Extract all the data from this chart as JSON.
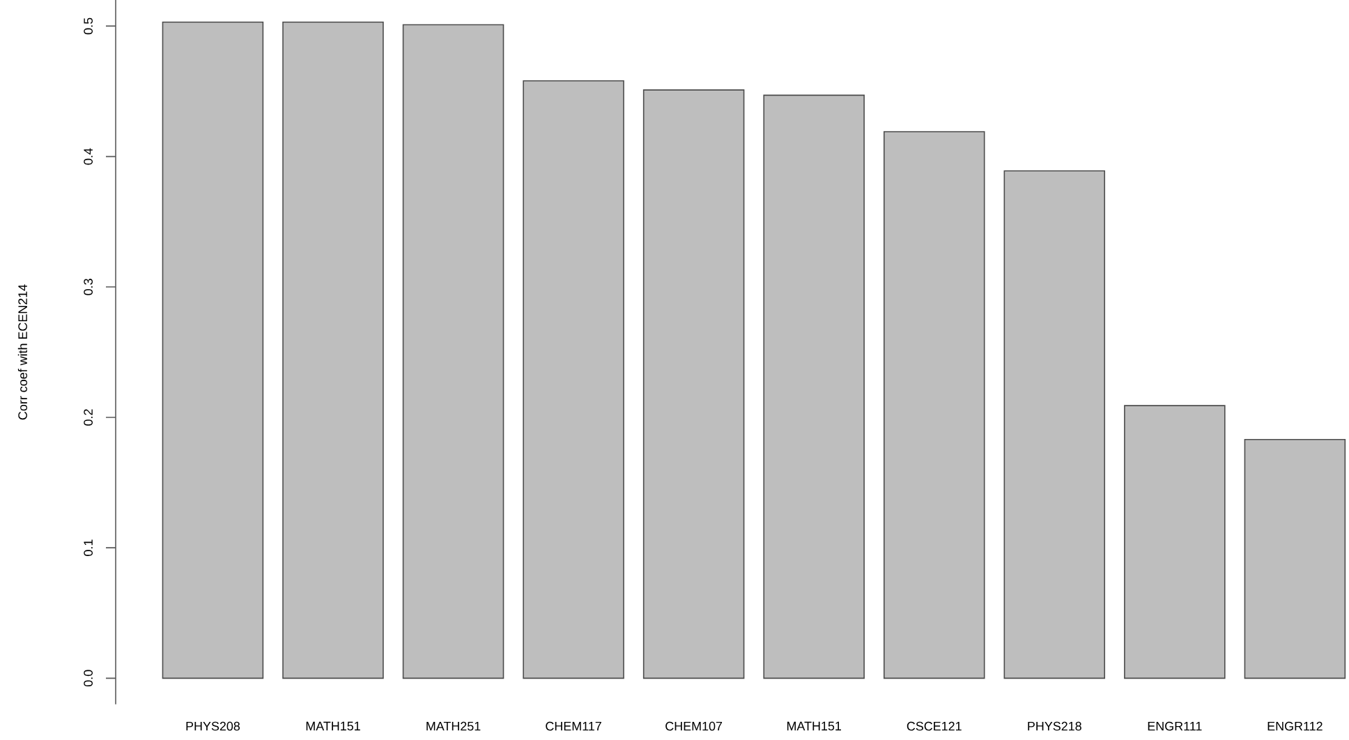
{
  "chart_data": {
    "type": "bar",
    "ylabel": "Corr coef with ECEN214",
    "categories": [
      "PHYS208",
      "MATH151",
      "MATH251",
      "CHEM117",
      "CHEM107",
      "MATH151",
      "CSCE121",
      "PHYS218",
      "ENGR111",
      "ENGR112"
    ],
    "values": [
      0.503,
      0.503,
      0.501,
      0.458,
      0.451,
      0.447,
      0.419,
      0.389,
      0.209,
      0.183
    ],
    "color": "#bebebe",
    "ylim": [
      -0.02,
      0.52
    ],
    "yticks": [
      {
        "value": 0,
        "label": "0.0"
      },
      0.1,
      0.2,
      0.3,
      0.4,
      0.5
    ],
    "grid": false
  }
}
